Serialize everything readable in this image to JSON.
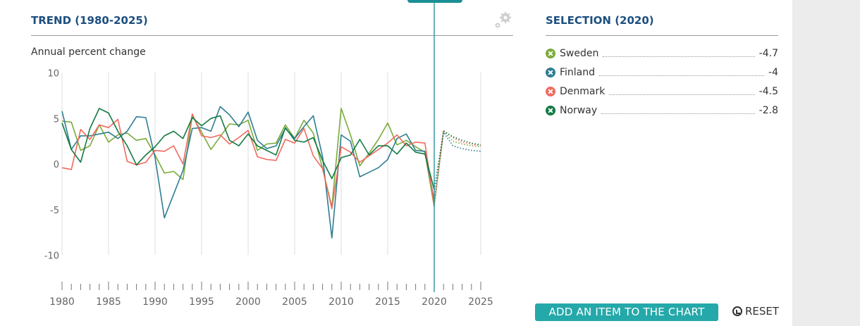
{
  "left_title": "TREND (1980-2025)",
  "right_title": "SELECTION (2020)",
  "legend": [
    {
      "name": "Sweden",
      "value": "-4.7",
      "color": "#7aab3b",
      "icon": "close-icon"
    },
    {
      "name": "Finland",
      "value": "-4",
      "color": "#2e7d93",
      "icon": "close-icon"
    },
    {
      "name": "Denmark",
      "value": "-4.5",
      "color": "#f06a5e",
      "icon": "close-icon"
    },
    {
      "name": "Norway",
      "value": "-2.8",
      "color": "#137a44",
      "icon": "close-icon"
    }
  ],
  "buttons": {
    "add": "ADD AN ITEM TO THE CHART",
    "reset": "RESET"
  },
  "icons": {
    "settings": "gear-icon",
    "reset": "reset-icon"
  },
  "chart_data": {
    "type": "line",
    "title": "TREND (1980-2025)",
    "ylabel": "Annual percent change",
    "xlabel": "",
    "ylim": [
      -10,
      10
    ],
    "yticks": [
      10,
      5,
      0,
      -5,
      -10
    ],
    "xticks": [
      1980,
      1985,
      1990,
      1995,
      2000,
      2005,
      2010,
      2015,
      2020,
      2025
    ],
    "selected_year": 2020,
    "forecast_from": 2020,
    "x": [
      1980,
      1981,
      1982,
      1983,
      1984,
      1985,
      1986,
      1987,
      1988,
      1989,
      1990,
      1991,
      1992,
      1993,
      1994,
      1995,
      1996,
      1997,
      1998,
      1999,
      2000,
      2001,
      2002,
      2003,
      2004,
      2005,
      2006,
      2007,
      2008,
      2009,
      2010,
      2011,
      2012,
      2013,
      2014,
      2015,
      2016,
      2017,
      2018,
      2019,
      2020,
      2021,
      2022,
      2023,
      2024,
      2025
    ],
    "series": [
      {
        "name": "Sweden",
        "color": "#7aab3b",
        "values": [
          4.7,
          4.6,
          1.5,
          2.0,
          4.3,
          2.4,
          3.2,
          3.4,
          2.6,
          2.8,
          1.0,
          -1.0,
          -0.8,
          -1.7,
          5.3,
          3.5,
          1.6,
          3.0,
          4.4,
          4.3,
          4.8,
          1.5,
          2.2,
          2.3,
          4.3,
          2.8,
          4.8,
          3.4,
          -0.5,
          -4.7,
          6.1,
          3.2,
          -0.2,
          1.2,
          2.7,
          4.5,
          2.1,
          2.6,
          1.9,
          1.3,
          -4.7,
          3.6,
          2.5,
          2.2,
          2.0,
          1.9
        ]
      },
      {
        "name": "Finland",
        "color": "#2e7d93",
        "values": [
          5.8,
          1.6,
          3.1,
          3.1,
          3.3,
          3.5,
          2.8,
          3.6,
          5.2,
          5.1,
          0.7,
          -5.9,
          -3.3,
          -0.7,
          3.9,
          4.0,
          3.6,
          6.3,
          5.4,
          4.1,
          5.7,
          2.6,
          1.7,
          2.0,
          3.9,
          2.8,
          4.1,
          5.3,
          0.8,
          -8.1,
          3.2,
          2.5,
          -1.4,
          -0.9,
          -0.4,
          0.5,
          2.8,
          3.3,
          1.5,
          1.4,
          -4.0,
          3.5,
          2.0,
          1.7,
          1.5,
          1.4
        ]
      },
      {
        "name": "Denmark",
        "color": "#f06a5e",
        "values": [
          -0.4,
          -0.6,
          3.8,
          2.7,
          4.3,
          4.0,
          4.9,
          0.3,
          -0.1,
          0.2,
          1.5,
          1.4,
          2.0,
          0.0,
          5.5,
          3.1,
          2.9,
          3.2,
          2.2,
          2.9,
          3.7,
          0.8,
          0.5,
          0.4,
          2.7,
          2.3,
          3.9,
          0.9,
          -0.5,
          -4.9,
          1.9,
          1.3,
          0.2,
          0.9,
          1.6,
          2.3,
          3.2,
          2.0,
          2.4,
          2.3,
          -4.5,
          3.7,
          2.9,
          2.4,
          2.2,
          2.0
        ]
      },
      {
        "name": "Norway",
        "color": "#137a44",
        "values": [
          4.5,
          1.6,
          0.2,
          3.9,
          6.1,
          5.6,
          3.6,
          2.0,
          -0.1,
          1.0,
          1.9,
          3.1,
          3.6,
          2.8,
          5.1,
          4.2,
          5.0,
          5.3,
          2.6,
          2.0,
          3.3,
          2.0,
          1.5,
          1.0,
          4.0,
          2.6,
          2.4,
          2.9,
          0.4,
          -1.6,
          0.7,
          1.0,
          2.7,
          1.0,
          2.0,
          2.0,
          1.1,
          2.3,
          1.3,
          1.1,
          -2.8,
          3.6,
          3.0,
          2.6,
          2.3,
          2.1
        ]
      }
    ]
  }
}
